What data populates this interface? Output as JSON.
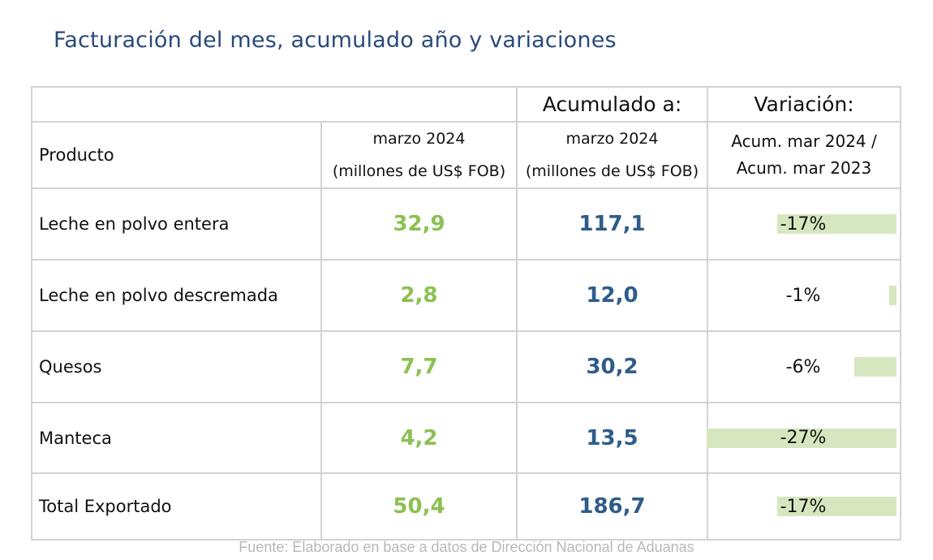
{
  "title": "Facturación del mes, acumulado año y variaciones",
  "header": {
    "acumulado_top": "Acumulado a:",
    "variacion_top": "Variación:",
    "producto": "Producto",
    "month_line1": "marzo 2024",
    "month_line2": "(millones de US$ FOB)",
    "acum_line1": "marzo 2024",
    "acum_line2": "(millones de US$ FOB)",
    "var_line1": "Acum. mar 2024 /",
    "var_line2": "Acum. mar 2023"
  },
  "rows": [
    {
      "product": "Leche en polvo entera",
      "month": "32,9",
      "acum": "117,1",
      "variation": "-17%",
      "variation_value": -17
    },
    {
      "product": "Leche en polvo descremada",
      "month": "2,8",
      "acum": "12,0",
      "variation": "-1%",
      "variation_value": -1
    },
    {
      "product": "Quesos",
      "month": "7,7",
      "acum": "30,2",
      "variation": "-6%",
      "variation_value": -6
    },
    {
      "product": "Manteca",
      "month": "4,2",
      "acum": "13,5",
      "variation": "-27%",
      "variation_value": -27
    },
    {
      "product": "Total Exportado",
      "month": "50,4",
      "acum": "186,7",
      "variation": "-17%",
      "variation_value": -17
    }
  ],
  "colors": {
    "month_value": "#8cc152",
    "acum_value": "#2e5c8a",
    "variation_bar": "#d6e7bf",
    "title": "#2a4a7a"
  },
  "source": "Fuente: Elaborado en base a datos de Dirección Nacional de Aduanas"
}
